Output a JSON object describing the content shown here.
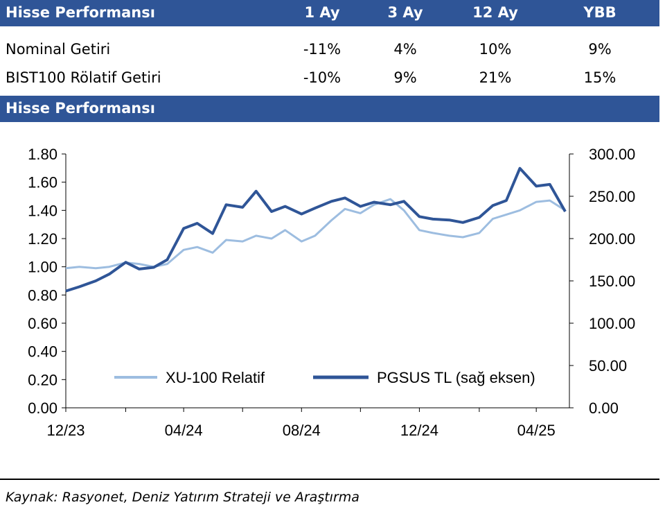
{
  "table": {
    "header": {
      "title": "Hisse Performansı",
      "cols": [
        "1 Ay",
        "3 Ay",
        "12 Ay",
        "YBB"
      ]
    },
    "rows": [
      {
        "label": "Nominal Getiri",
        "values": [
          "-11%",
          "4%",
          "10%",
          "9%"
        ]
      },
      {
        "label": "BIST100 Rölatif Getiri",
        "values": [
          "-10%",
          "9%",
          "21%",
          "15%"
        ]
      }
    ]
  },
  "section_title": "Hisse Performansı",
  "chart_data": {
    "type": "line",
    "x_ticks": [
      "12/23",
      "04/24",
      "08/24",
      "12/24",
      "04/25"
    ],
    "left_axis": {
      "ylim": [
        0,
        1.8
      ],
      "ticks": [
        "0.00",
        "0.20",
        "0.40",
        "0.60",
        "0.80",
        "1.00",
        "1.20",
        "1.40",
        "1.60",
        "1.80"
      ]
    },
    "right_axis": {
      "ylim": [
        0,
        300
      ],
      "ticks": [
        "0.00",
        "50.00",
        "100.00",
        "150.00",
        "200.00",
        "250.00",
        "300.00"
      ]
    },
    "legend_position": "bottom-center",
    "series": [
      {
        "name": "XU-100 Relatif",
        "axis": "left",
        "color": "#9dbde0",
        "x": [
          "2023-12-01",
          "2023-12-15",
          "2024-01-01",
          "2024-01-15",
          "2024-02-01",
          "2024-02-15",
          "2024-03-01",
          "2024-03-15",
          "2024-04-01",
          "2024-04-15",
          "2024-05-01",
          "2024-05-15",
          "2024-06-01",
          "2024-06-15",
          "2024-07-01",
          "2024-07-15",
          "2024-08-01",
          "2024-08-15",
          "2024-09-01",
          "2024-09-15",
          "2024-10-01",
          "2024-10-15",
          "2024-11-01",
          "2024-11-15",
          "2024-12-01",
          "2024-12-15",
          "2025-01-01",
          "2025-01-15",
          "2025-02-01",
          "2025-02-15",
          "2025-03-01",
          "2025-03-15",
          "2025-04-01",
          "2025-04-15",
          "2025-05-01"
        ],
        "values": [
          0.99,
          1.0,
          0.99,
          1.0,
          1.03,
          1.02,
          1.0,
          1.02,
          1.12,
          1.14,
          1.1,
          1.19,
          1.18,
          1.22,
          1.2,
          1.26,
          1.18,
          1.22,
          1.33,
          1.41,
          1.38,
          1.44,
          1.48,
          1.4,
          1.26,
          1.24,
          1.22,
          1.21,
          1.24,
          1.34,
          1.37,
          1.4,
          1.46,
          1.47,
          1.4
        ]
      },
      {
        "name": "PGSUS TL (sağ eksen)",
        "axis": "right",
        "color": "#2f5597",
        "x": [
          "2023-12-01",
          "2023-12-15",
          "2024-01-01",
          "2024-01-15",
          "2024-02-01",
          "2024-02-15",
          "2024-03-01",
          "2024-03-15",
          "2024-04-01",
          "2024-04-15",
          "2024-05-01",
          "2024-05-15",
          "2024-06-01",
          "2024-06-15",
          "2024-07-01",
          "2024-07-15",
          "2024-08-01",
          "2024-08-15",
          "2024-09-01",
          "2024-09-15",
          "2024-10-01",
          "2024-10-15",
          "2024-11-01",
          "2024-11-15",
          "2024-12-01",
          "2024-12-15",
          "2025-01-01",
          "2025-01-15",
          "2025-02-01",
          "2025-02-15",
          "2025-03-01",
          "2025-03-15",
          "2025-04-01",
          "2025-04-15",
          "2025-05-01"
        ],
        "values": [
          138,
          143,
          150,
          158,
          172,
          164,
          166,
          175,
          212,
          218,
          206,
          240,
          237,
          256,
          232,
          238,
          229,
          236,
          244,
          248,
          238,
          243,
          240,
          244,
          226,
          223,
          222,
          219,
          225,
          239,
          245,
          283,
          262,
          264,
          232
        ]
      }
    ]
  },
  "source": "Kaynak: Rasyonet, Deniz Yatırım Strateji ve Araştırma"
}
